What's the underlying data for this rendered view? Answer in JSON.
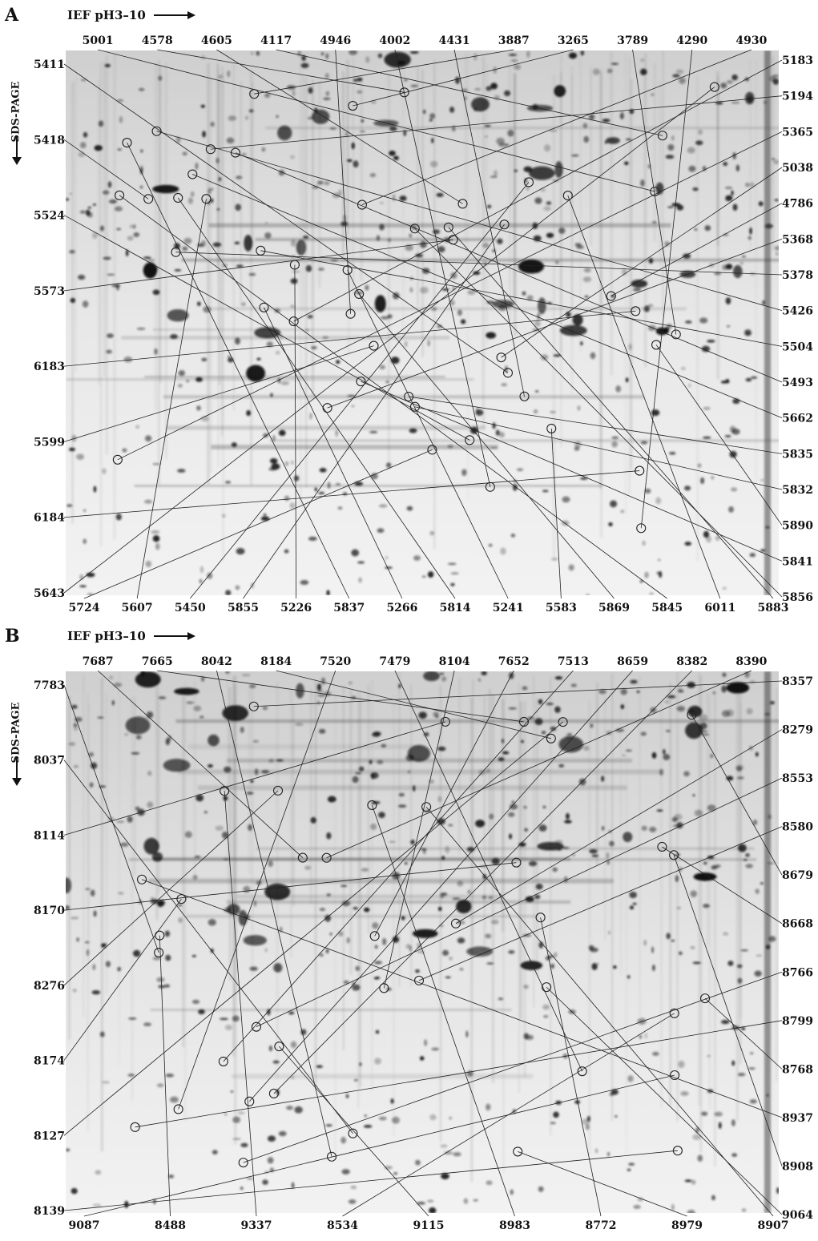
{
  "panels": [
    {
      "letter": "A",
      "ief_label": "IEF pH3–10",
      "sds_label": "SDS-PAGE",
      "colors": {
        "gel_bg": "#e8e8e8",
        "spot": "#1a1a1a",
        "line": "#222222"
      },
      "top_labels": [
        "5001",
        "4578",
        "4605",
        "4117",
        "4946",
        "4002",
        "4431",
        "3887",
        "3265",
        "3789",
        "4290",
        "4930"
      ],
      "left_labels": [
        "5411",
        "5418",
        "5524",
        "5573",
        "6183",
        "5599",
        "6184",
        "5643"
      ],
      "right_labels": [
        "5183",
        "5194",
        "5365",
        "5038",
        "4786",
        "5368",
        "5378",
        "5426",
        "5504",
        "5493",
        "5662",
        "5835",
        "5832",
        "5890",
        "5841",
        "5856"
      ],
      "bottom_labels": [
        "5724",
        "5607",
        "5450",
        "5855",
        "5226",
        "5837",
        "5266",
        "5814",
        "5241",
        "5583",
        "5869",
        "5845",
        "6011",
        "5883"
      ]
    },
    {
      "letter": "B",
      "ief_label": "IEF pH3–10",
      "sds_label": "SDS-PAGE",
      "colors": {
        "gel_bg": "#e4e4e4",
        "spot": "#1a1a1a",
        "line": "#222222"
      },
      "top_labels": [
        "7687",
        "7665",
        "8042",
        "8184",
        "7520",
        "7479",
        "8104",
        "7652",
        "7513",
        "8659",
        "8382",
        "8390"
      ],
      "left_labels": [
        "7783",
        "8037",
        "8114",
        "8170",
        "8276",
        "8174",
        "8127",
        "8139"
      ],
      "right_labels": [
        "8357",
        "8279",
        "8553",
        "8580",
        "8679",
        "8668",
        "8766",
        "8799",
        "8768",
        "8937",
        "8908",
        "9064"
      ],
      "bottom_labels": [
        "9087",
        "8488",
        "9337",
        "8534",
        "9115",
        "8983",
        "8772",
        "8979",
        "8907"
      ]
    }
  ]
}
